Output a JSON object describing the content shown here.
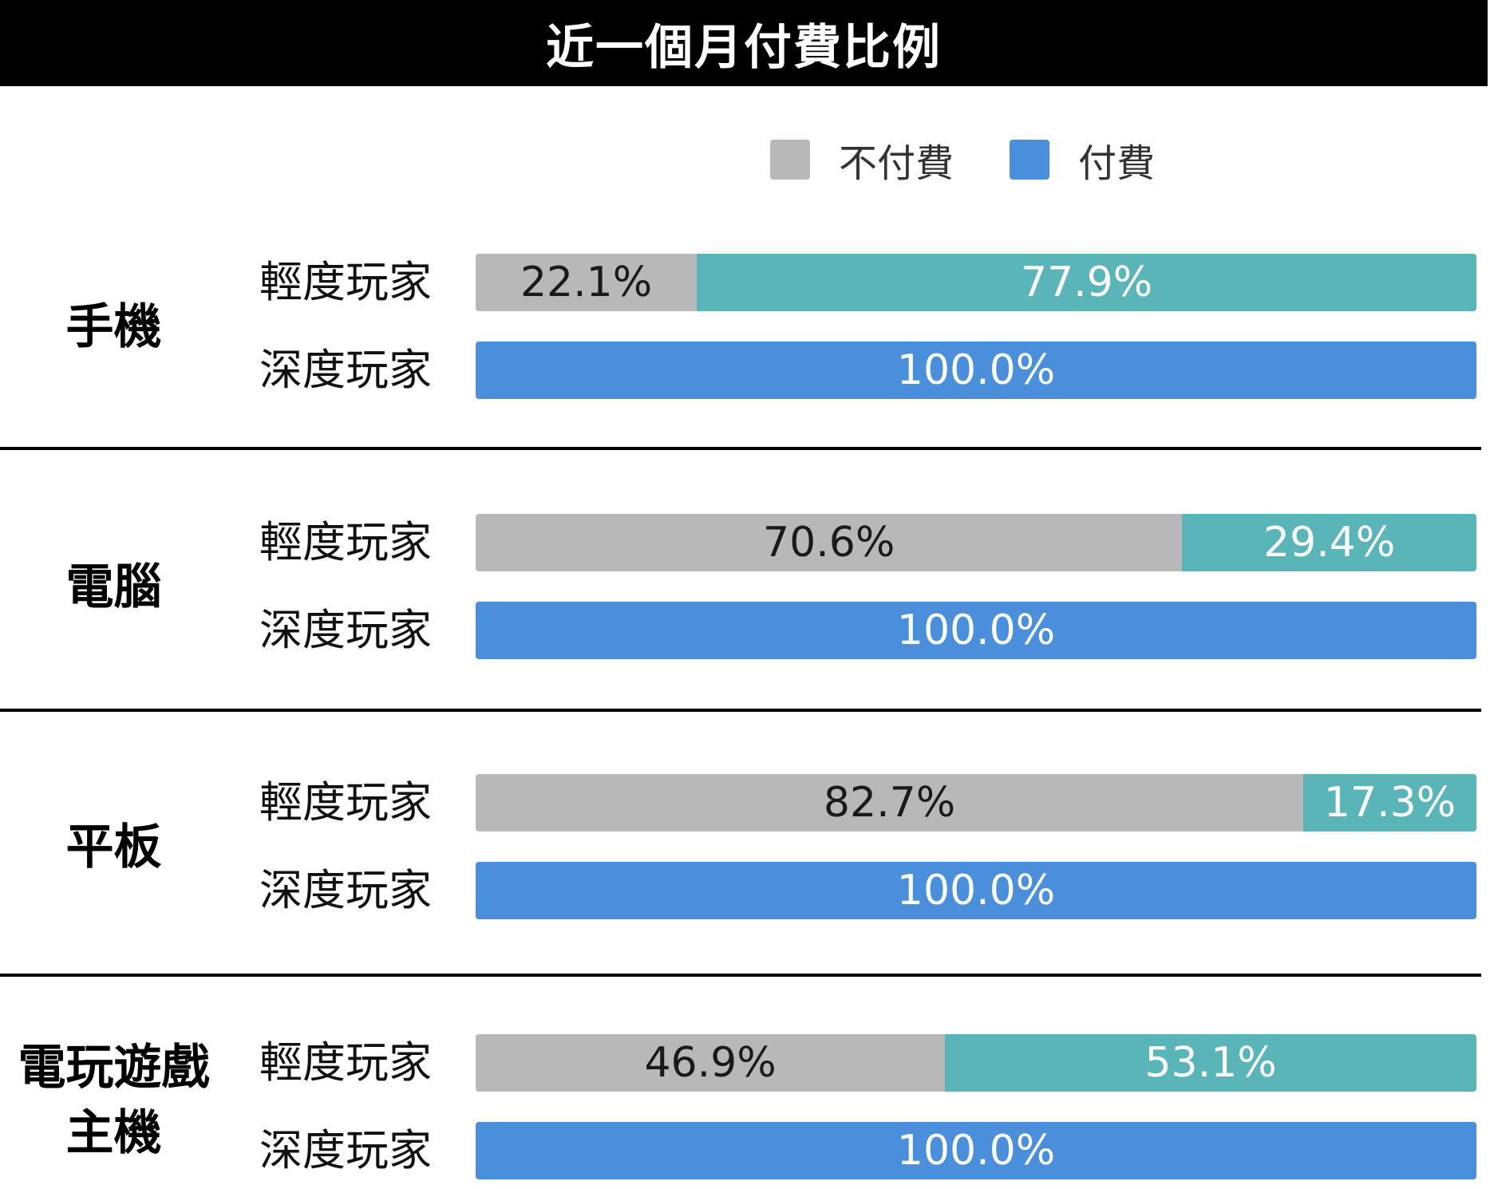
{
  "title": "近一個月付費比例",
  "legend": [
    {
      "label": "不付費",
      "color": "#b8b8b8"
    },
    {
      "label": "付費",
      "color": "#4a8fdc"
    }
  ],
  "colors": {
    "unpaid": "#b8b8b8",
    "paid_light": "#5ab5b9",
    "paid_deep": "#4a8fdc"
  },
  "chart_data": {
    "type": "bar",
    "stacked": true,
    "orientation": "horizontal",
    "groups": [
      {
        "name": "手機",
        "rows": [
          {
            "label": "輕度玩家",
            "unpaid": 22.1,
            "paid": 77.9,
            "unpaid_text": "22.1%",
            "paid_text": "77.9%"
          },
          {
            "label": "深度玩家",
            "unpaid": 0,
            "paid": 100.0,
            "unpaid_text": "",
            "paid_text": "100.0%"
          }
        ]
      },
      {
        "name": "電腦",
        "rows": [
          {
            "label": "輕度玩家",
            "unpaid": 70.6,
            "paid": 29.4,
            "unpaid_text": "70.6%",
            "paid_text": "29.4%"
          },
          {
            "label": "深度玩家",
            "unpaid": 0,
            "paid": 100.0,
            "unpaid_text": "",
            "paid_text": "100.0%"
          }
        ]
      },
      {
        "name": "平板",
        "rows": [
          {
            "label": "輕度玩家",
            "unpaid": 82.7,
            "paid": 17.3,
            "unpaid_text": "82.7%",
            "paid_text": "17.3%"
          },
          {
            "label": "深度玩家",
            "unpaid": 0,
            "paid": 100.0,
            "unpaid_text": "",
            "paid_text": "100.0%"
          }
        ]
      },
      {
        "name": "電玩遊戲主機",
        "name_lines": [
          "電玩遊戲",
          "主機"
        ],
        "rows": [
          {
            "label": "輕度玩家",
            "unpaid": 46.9,
            "paid": 53.1,
            "unpaid_text": "46.9%",
            "paid_text": "53.1%"
          },
          {
            "label": "深度玩家",
            "unpaid": 0,
            "paid": 100.0,
            "unpaid_text": "",
            "paid_text": "100.0%"
          }
        ]
      }
    ],
    "xlim": [
      0,
      100
    ],
    "grid": false,
    "legend_position": "top-right"
  }
}
